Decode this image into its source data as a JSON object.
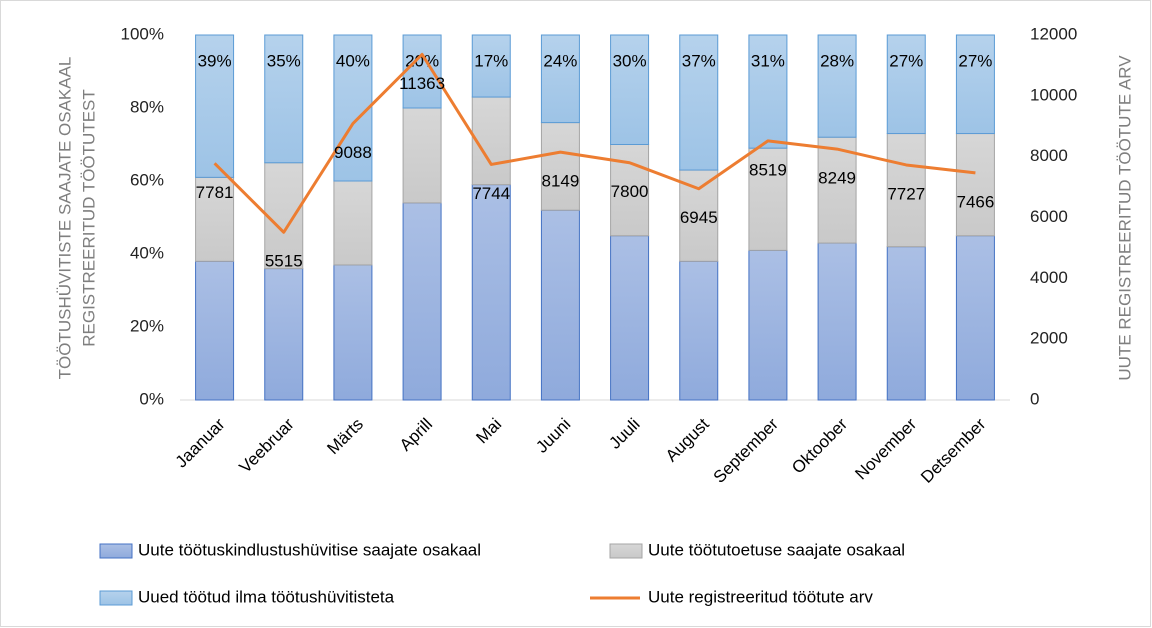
{
  "chart_data": {
    "type": "stacked_bar_line",
    "categories": [
      "Jaanuar",
      "Veebruar",
      "Märts",
      "Aprill",
      "Mai",
      "Juuni",
      "Juuli",
      "August",
      "September",
      "Oktoober",
      "November",
      "Detsember"
    ],
    "series": [
      {
        "name": "Uute töötuskindlustushüvitise saajate osakaal",
        "color": "#8faadc",
        "border": "#4472c4",
        "values": [
          38,
          36,
          37,
          54,
          59,
          52,
          45,
          38,
          41,
          43,
          42,
          45
        ]
      },
      {
        "name": "Uute töötutoetuse saajate osakaal",
        "color": "#c9c9c9",
        "border": "#a5a5a5",
        "values": [
          23,
          29,
          23,
          26,
          24,
          24,
          25,
          25,
          28,
          29,
          31,
          28
        ]
      },
      {
        "name": "Uued töötud ilma töötushüvitisteta",
        "color": "#9dc3e6",
        "border": "#5b9bd5",
        "values": [
          39,
          35,
          40,
          20,
          17,
          24,
          30,
          37,
          31,
          28,
          27,
          27
        ],
        "value_labels": [
          "39%",
          "35%",
          "40%",
          "20%",
          "17%",
          "24%",
          "30%",
          "37%",
          "31%",
          "28%",
          "27%",
          "27%"
        ]
      },
      {
        "name": "Uute registreeritud töötute arv",
        "color": "#ed7d31",
        "axis": "y2",
        "values": [
          7781,
          5515,
          9088,
          11363,
          7744,
          8149,
          7800,
          6945,
          8519,
          8249,
          7727,
          7466
        ]
      }
    ],
    "ylabel": [
      "TÖÖTUSHÜVITISTE SAAJATE OSAKAAL",
      "REGISTREERITUD TÖÖTUTEST"
    ],
    "y2label": "UUTE REGISTREERITUD TÖÖTUTE ARV",
    "ylim": [
      0,
      100
    ],
    "yticks": [
      {
        "value": 0,
        "label": "0%"
      },
      {
        "value": 20,
        "label": "20%"
      },
      {
        "value": 40,
        "label": "40%"
      },
      {
        "value": 60,
        "label": "60%"
      },
      {
        "value": 80,
        "label": "80%"
      },
      {
        "value": 100,
        "label": "100%"
      }
    ],
    "y2lim": [
      0,
      12000
    ],
    "y2ticks": [
      0,
      2000,
      4000,
      6000,
      8000,
      10000,
      12000
    ]
  }
}
